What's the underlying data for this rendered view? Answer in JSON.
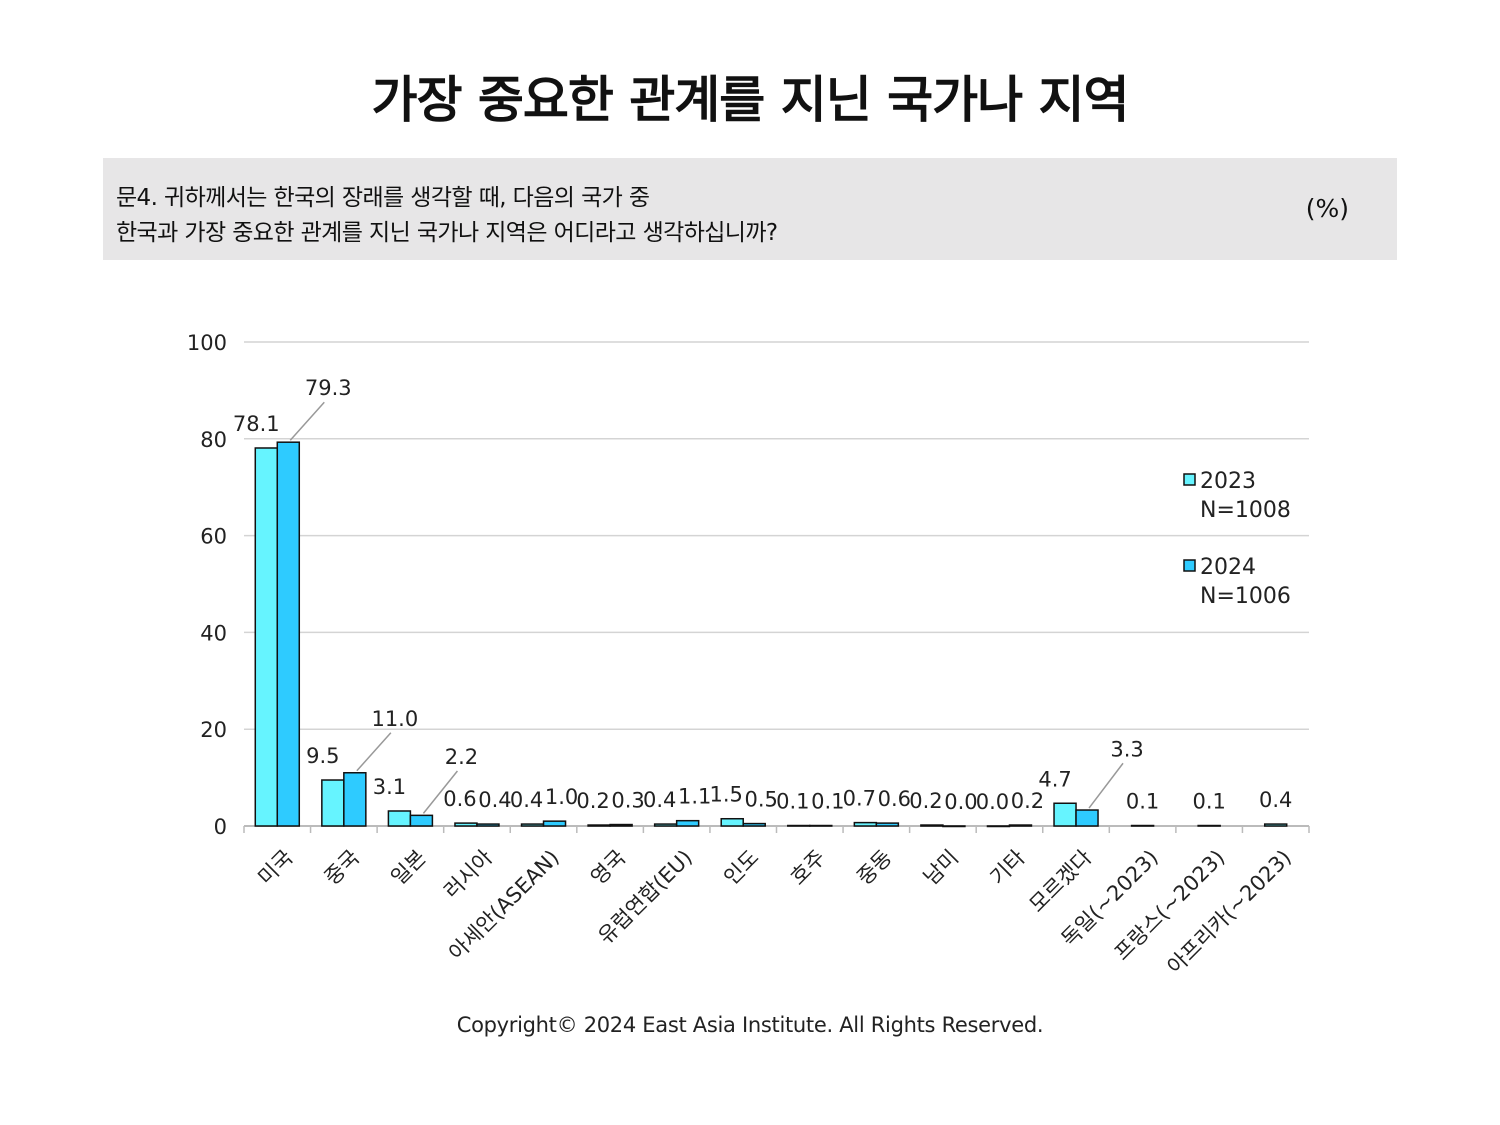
{
  "title": "가장 중요한 관계를 지닌 국가나 지역",
  "question": {
    "line1": "문4. 귀하께서는 한국의 장래를 생각할 때, 다음의 국가 중",
    "line2": "한국과 가장 중요한 관계를 지닌 국가나 지역은 어디라고 생각하십니까?",
    "unit": "(%)"
  },
  "copyright": "Copyright© 2024 East Asia Institute. All Rights Reserved.",
  "colors": {
    "series_2023": "#66f4ff",
    "series_2024": "#2ecbff",
    "bar_stroke": "#111111",
    "grid": "#d4d4d4",
    "leader": "#999999"
  },
  "chart_data": {
    "type": "bar",
    "categories": [
      "미국",
      "중국",
      "일본",
      "러시아",
      "아세안(ASEAN)",
      "영국",
      "유럽연합(EU)",
      "인도",
      "호주",
      "중동",
      "남미",
      "기타",
      "모르겠다",
      "독일(~2023)",
      "프랑스(~2023)",
      "아프리카(~2023)"
    ],
    "series": [
      {
        "name": "2023",
        "legend_note": "N=1008",
        "values": [
          78.1,
          9.5,
          3.1,
          0.6,
          0.4,
          0.2,
          0.4,
          1.5,
          0.1,
          0.7,
          0.2,
          0.0,
          4.7,
          0.1,
          0.1,
          0.4
        ],
        "labels": [
          "78.1",
          "9.5",
          "3.1",
          "0.6",
          "0.4",
          "0.2",
          "0.4",
          "1.5",
          "0.1",
          "0.7",
          "0.2",
          "0.0",
          "4.7",
          "0.1",
          "0.1",
          "0.4"
        ]
      },
      {
        "name": "2024",
        "legend_note": "N=1006",
        "values": [
          79.3,
          11.0,
          2.2,
          0.4,
          1.0,
          0.3,
          1.1,
          0.5,
          0.1,
          0.6,
          0.0,
          0.2,
          3.3,
          null,
          null,
          null
        ],
        "labels": [
          "79.3",
          "11.0",
          "2.2",
          "0.4",
          "1.0",
          "0.3",
          "1.1",
          "0.5",
          "0.1",
          "0.6",
          "0.0",
          "0.2",
          "3.3",
          null,
          null,
          null
        ]
      }
    ],
    "y_ticks": [
      "0",
      "20",
      "40",
      "60",
      "80",
      "100"
    ],
    "ylim": [
      0,
      100
    ],
    "grid": true,
    "legend_position": "right"
  }
}
